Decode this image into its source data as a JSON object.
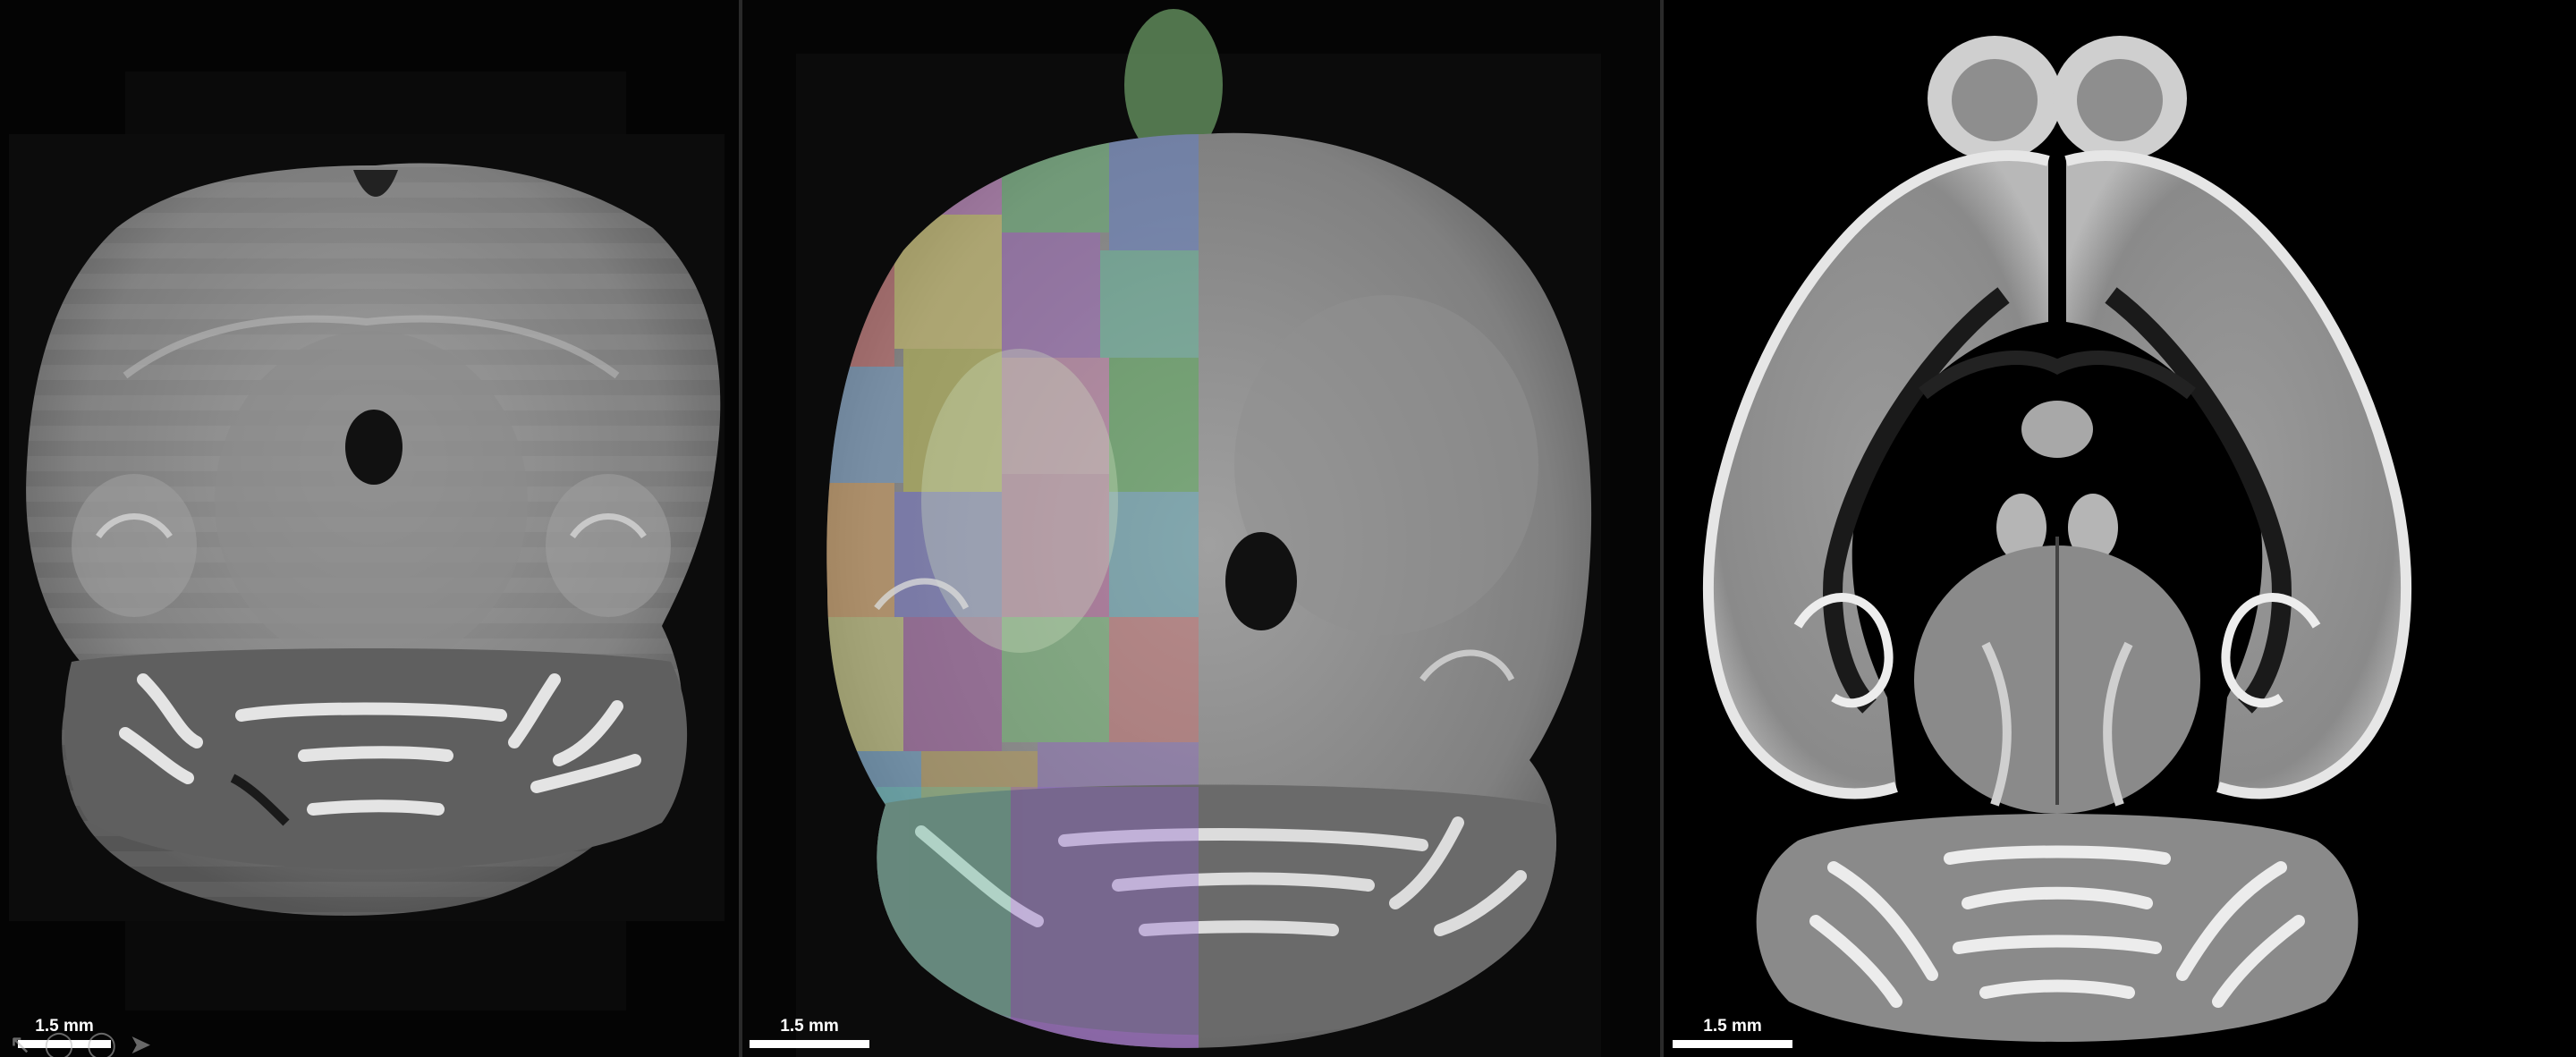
{
  "panels": [
    {
      "id": "raw-section",
      "scale_label": "1.5 mm"
    },
    {
      "id": "overlay-section",
      "scale_label": "1.5 mm"
    },
    {
      "id": "template-atlas",
      "scale_label": "1.5 mm"
    }
  ],
  "icons": [
    "arrow-icon",
    "circle-icon",
    "circle-icon",
    "cursor-icon"
  ]
}
